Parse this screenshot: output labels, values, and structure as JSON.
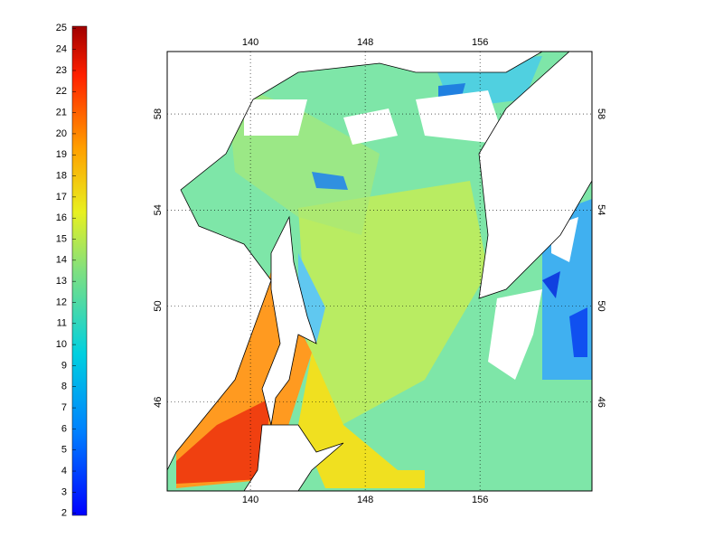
{
  "colorbar": {
    "ticks": [
      2,
      3,
      4,
      5,
      6,
      7,
      8,
      9,
      10,
      11,
      12,
      13,
      14,
      15,
      16,
      17,
      18,
      19,
      20,
      21,
      22,
      23,
      24,
      25
    ],
    "lim": [
      1.9,
      25.1
    ]
  },
  "map": {
    "xticks": [
      140,
      148,
      156
    ],
    "yticks": [
      46,
      50,
      54,
      58
    ],
    "xlim": [
      134.2,
      163.8
    ],
    "ylim": [
      42.3,
      60.6
    ]
  }
}
